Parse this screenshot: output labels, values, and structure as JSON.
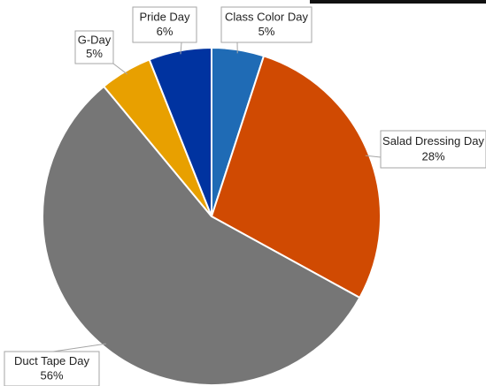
{
  "chart_data": {
    "type": "pie",
    "categories": [
      "Class Color Day",
      "Salad Dressing Day",
      "Duct Tape Day",
      "G-Day",
      "Pride Day"
    ],
    "values": [
      5,
      28,
      56,
      5,
      6
    ],
    "value_labels": [
      "5%",
      "28%",
      "56%",
      "5%",
      "6%"
    ],
    "colors": [
      "#1f6bb5",
      "#d04a02",
      "#767676",
      "#e8a000",
      "#0033a0"
    ]
  }
}
